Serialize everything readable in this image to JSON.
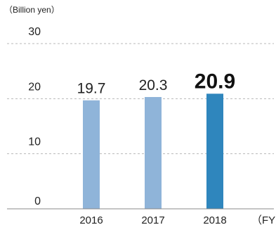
{
  "chart_data": {
    "type": "bar",
    "unit_label": "（Billion yen）",
    "x_unit_label": "（FY）",
    "categories": [
      "2016",
      "2017",
      "2018"
    ],
    "values": [
      19.7,
      20.3,
      20.9
    ],
    "value_labels": [
      "19.7",
      "20.3",
      "20.9"
    ],
    "highlight_index": 2,
    "ylim": [
      0,
      30
    ],
    "yticks": [
      0,
      10,
      20,
      30
    ],
    "ytick_labels": [
      "0",
      "10",
      "20",
      "30"
    ],
    "grid": true,
    "colors": {
      "bar": "#8fb4d9",
      "bar_highlight": "#2f86bd"
    }
  }
}
